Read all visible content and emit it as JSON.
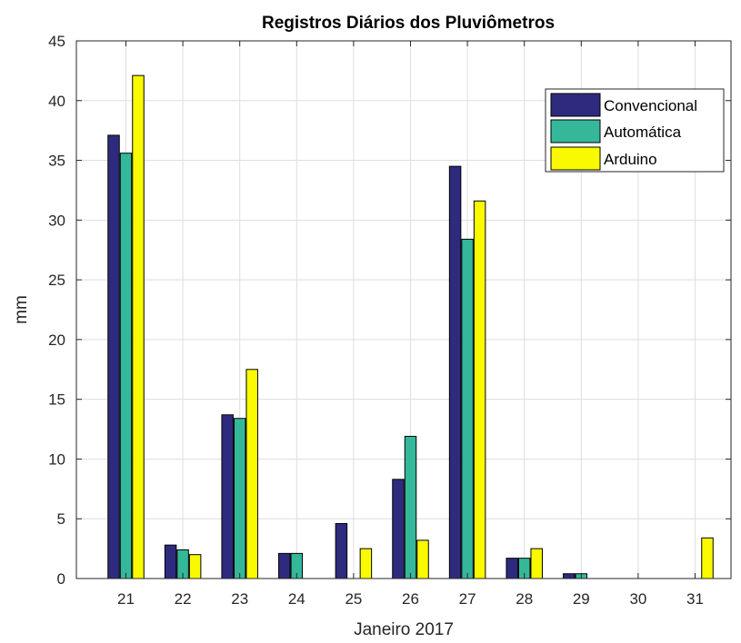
{
  "chart_data": {
    "type": "bar",
    "title": "Registros Diários dos Pluviômetros",
    "xlabel": "Janeiro 2017",
    "ylabel": "mm",
    "categories": [
      "21",
      "22",
      "23",
      "24",
      "25",
      "26",
      "27",
      "28",
      "29",
      "30",
      "31"
    ],
    "ylim": [
      0,
      45
    ],
    "yticks": [
      "0",
      "5",
      "10",
      "15",
      "20",
      "25",
      "30",
      "35",
      "40",
      "45"
    ],
    "grid": true,
    "legend_position": "top-right",
    "series": [
      {
        "name": "Convencional",
        "color": "#2e2b7e",
        "values": [
          37.1,
          2.8,
          13.7,
          2.1,
          4.6,
          8.3,
          34.5,
          1.7,
          0.4,
          0,
          0
        ]
      },
      {
        "name": "Automática",
        "color": "#35b79a",
        "values": [
          35.6,
          2.4,
          13.4,
          2.1,
          0,
          11.9,
          28.4,
          1.7,
          0.4,
          0,
          0
        ]
      },
      {
        "name": "Arduino",
        "color": "#f9f900",
        "values": [
          42.1,
          2.0,
          17.5,
          0,
          2.5,
          3.2,
          31.6,
          2.5,
          0,
          0,
          3.4
        ]
      }
    ]
  }
}
